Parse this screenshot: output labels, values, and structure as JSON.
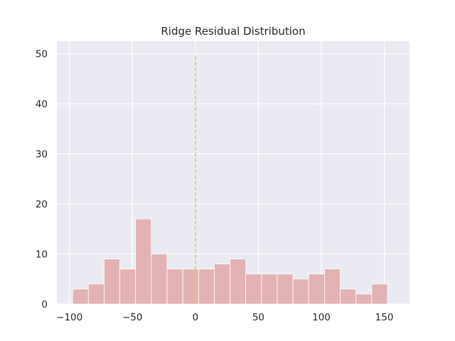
{
  "chart_data": {
    "type": "histogram",
    "title": "Ridge Residual Distribution",
    "xlabel": "",
    "ylabel": "",
    "xlim": [
      -110,
      170
    ],
    "ylim": [
      0,
      52.5
    ],
    "x_ticks": [
      -100,
      -50,
      0,
      50,
      100,
      150
    ],
    "x_tick_labels": [
      "−100",
      "−50",
      "0",
      "50",
      "100",
      "150"
    ],
    "y_ticks": [
      0,
      10,
      20,
      30,
      40,
      50
    ],
    "y_tick_labels": [
      "0",
      "10",
      "20",
      "30",
      "40",
      "50"
    ],
    "grid": true,
    "bins": [
      {
        "x0": -97.5,
        "x1": -85.0,
        "count": 3
      },
      {
        "x0": -85.0,
        "x1": -72.5,
        "count": 4
      },
      {
        "x0": -72.5,
        "x1": -60.0,
        "count": 9
      },
      {
        "x0": -60.0,
        "x1": -47.5,
        "count": 7
      },
      {
        "x0": -47.5,
        "x1": -35.0,
        "count": 17
      },
      {
        "x0": -35.0,
        "x1": -22.5,
        "count": 10
      },
      {
        "x0": -22.5,
        "x1": -10.0,
        "count": 7
      },
      {
        "x0": -10.0,
        "x1": 2.5,
        "count": 7
      },
      {
        "x0": 2.5,
        "x1": 15.0,
        "count": 7
      },
      {
        "x0": 15.0,
        "x1": 27.5,
        "count": 8
      },
      {
        "x0": 27.5,
        "x1": 40.0,
        "count": 9
      },
      {
        "x0": 40.0,
        "x1": 52.5,
        "count": 6
      },
      {
        "x0": 52.5,
        "x1": 65.0,
        "count": 6
      },
      {
        "x0": 65.0,
        "x1": 77.5,
        "count": 6
      },
      {
        "x0": 77.5,
        "x1": 90.0,
        "count": 5
      },
      {
        "x0": 90.0,
        "x1": 102.5,
        "count": 6
      },
      {
        "x0": 102.5,
        "x1": 115.0,
        "count": 7
      },
      {
        "x0": 115.0,
        "x1": 127.5,
        "count": 3
      },
      {
        "x0": 127.5,
        "x1": 140.0,
        "count": 2
      },
      {
        "x0": 140.0,
        "x1": 152.5,
        "count": 4
      }
    ],
    "reference_line": {
      "x": 0,
      "y_range": [
        0,
        50
      ],
      "style": "dashed",
      "color": "#d4d43c"
    },
    "colors": {
      "bar": "#e3b2b5",
      "plot_bg": "#eaeaf2",
      "grid": "#ffffff"
    }
  }
}
